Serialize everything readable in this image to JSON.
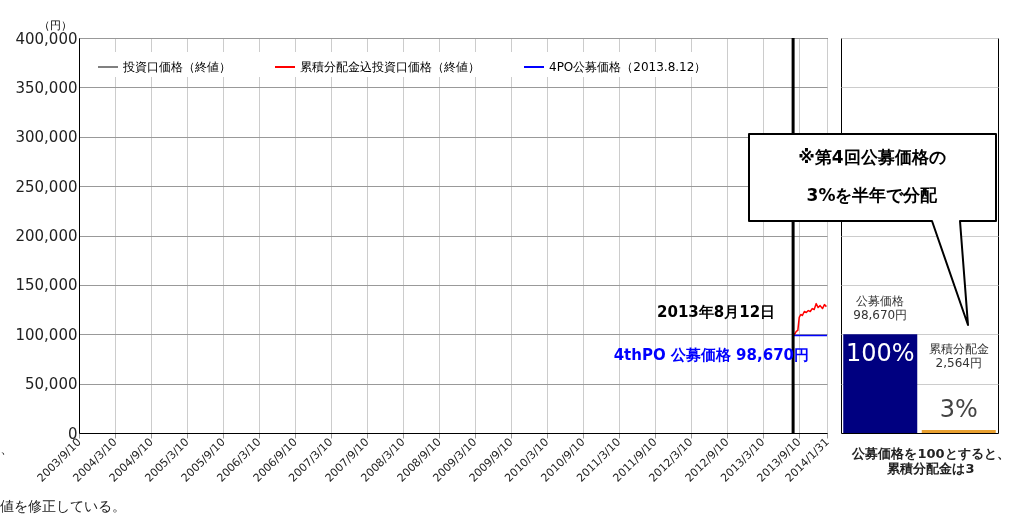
{
  "chart_data": [
    {
      "type": "line",
      "ylabel": "（円）",
      "legend": "top left",
      "grid": true,
      "xlim": [
        "2003-09-10",
        "2014-01-31"
      ],
      "xticks": [
        {
          "value": "2003-09-10",
          "label": "2003/9/10"
        },
        {
          "value": "2004-03-10",
          "label": "2004/3/10"
        },
        {
          "value": "2004-09-10",
          "label": "2004/9/10"
        },
        {
          "value": "2005-03-10",
          "label": "2005/3/10"
        },
        {
          "value": "2005-09-10",
          "label": "2005/9/10"
        },
        {
          "value": "2006-03-10",
          "label": "2006/3/10"
        },
        {
          "value": "2006-09-10",
          "label": "2006/9/10"
        },
        {
          "value": "2007-03-10",
          "label": "2007/3/10"
        },
        {
          "value": "2007-09-10",
          "label": "2007/9/10"
        },
        {
          "value": "2008-03-10",
          "label": "2008/3/10"
        },
        {
          "value": "2008-09-10",
          "label": "2008/9/10"
        },
        {
          "value": "2009-03-10",
          "label": "2009/3/10"
        },
        {
          "value": "2009-09-10",
          "label": "2009/9/10"
        },
        {
          "value": "2010-03-10",
          "label": "2010/3/10"
        },
        {
          "value": "2010-09-10",
          "label": "2010/9/10"
        },
        {
          "value": "2011-03-10",
          "label": "2011/3/10"
        },
        {
          "value": "2011-09-10",
          "label": "2011/9/10"
        },
        {
          "value": "2012-03-10",
          "label": "2012/3/10"
        },
        {
          "value": "2012-09-10",
          "label": "2012/9/10"
        },
        {
          "value": "2013-03-10",
          "label": "2013/3/10"
        },
        {
          "value": "2013-09-10",
          "label": "2013/9/10"
        },
        {
          "value": "2014-01-31",
          "label": "2014/1/31"
        }
      ],
      "ylim": [
        0,
        400000
      ],
      "yticks": [
        0,
        {
          "value": 50000,
          "label": "50,000"
        },
        {
          "value": 100000,
          "label": "100,000"
        },
        {
          "value": 150000,
          "label": "150,000"
        },
        {
          "value": 200000,
          "label": "200,000"
        },
        {
          "value": 250000,
          "label": "250,000"
        },
        {
          "value": 300000,
          "label": "300,000"
        },
        {
          "value": 350000,
          "label": "350,000"
        },
        {
          "value": 400000,
          "label": "400,000"
        }
      ],
      "ref_lines": [
        {
          "axis": "x",
          "value": "2013-08-12",
          "color": "#000000"
        }
      ],
      "annotations": [
        "※第4回公募価格の\n3%を半年で分配",
        "、",
        "値を修正している。",
        {
          "text": "2013年8月12日",
          "x": "2013-08-12",
          "y": 123000
        },
        {
          "text": "4thPO 公募価格  98,670円",
          "x": "2014-01-31",
          "y": 98670
        }
      ],
      "series": [
        {
          "name": "投資口価格（終値）",
          "color": "#808080"
        },
        {
          "name": "累積分配金込投資口価格（終値）",
          "color": "#ff0000",
          "x": [
            "2013-08-12",
            "2013-08-20",
            "2013-08-28",
            "2013-09-05",
            "2013-09-12",
            "2013-09-20",
            "2013-09-28",
            "2013-10-08",
            "2013-10-18",
            "2013-10-28",
            "2013-11-07",
            "2013-11-17",
            "2013-11-27",
            "2013-12-07",
            "2013-12-17",
            "2013-12-27",
            "2014-01-08",
            "2014-01-18",
            "2014-01-28"
          ],
          "values": [
            101000,
            100000,
            103000,
            104000,
            117000,
            120000,
            119000,
            123000,
            122000,
            124000,
            123000,
            126000,
            125000,
            131000,
            127000,
            129000,
            126000,
            130000,
            128000
          ]
        },
        {
          "name": "4PO公募価格（2013.8.12）",
          "color": "#0000ff",
          "x": [
            "2013-08-12",
            "2014-01-31"
          ],
          "values": [
            98670,
            98670
          ]
        }
      ]
    },
    {
      "type": "bar",
      "xlabel": "公募価格を100とすると、累積分配金は3",
      "categories": [
        "公募価格 98,670円",
        "累積分配金 2,564円"
      ],
      "values": [
        100,
        3
      ],
      "colors": [
        "#000080",
        "#e8a030"
      ],
      "value_labels": [
        "100%",
        "3%"
      ],
      "ylim": [
        0,
        400
      ],
      "yticks": [
        {
          "value": 0,
          "label": null
        },
        {
          "value": 50,
          "label": null
        },
        {
          "value": 100,
          "label": null
        },
        {
          "value": 150,
          "label": null
        },
        {
          "value": 200,
          "label": null
        },
        {
          "value": 350,
          "label": null
        },
        {
          "value": 400,
          "label": null
        }
      ],
      "grid": "y",
      "tick_labels": false
    }
  ]
}
